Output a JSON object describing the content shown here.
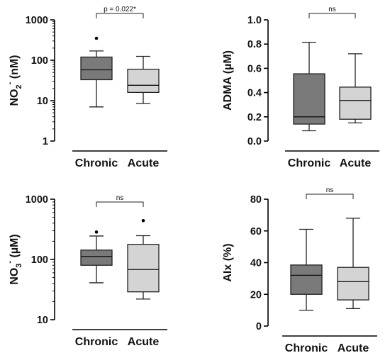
{
  "chart_data": [
    {
      "type": "box",
      "panel": "top-left",
      "ylabel": "NO2- (nM)",
      "yscale": "log",
      "ylim": [
        1,
        1000
      ],
      "ytick_labels": [
        "1",
        "10",
        "100",
        "1000"
      ],
      "categories": [
        "Chronic",
        "Acute"
      ],
      "boxes": [
        {
          "category": "Chronic",
          "whisker_low": 7,
          "q1": 33,
          "median": 58,
          "q3": 120,
          "whisker_high": 170,
          "outliers": [
            350
          ],
          "color": "#7a7a7a"
        },
        {
          "category": "Acute",
          "whisker_low": 8.5,
          "q1": 16,
          "median": 24,
          "q3": 60,
          "whisker_high": 125,
          "outliers": [],
          "color": "#d4d4d4"
        }
      ],
      "significance": "p = 0.022*"
    },
    {
      "type": "box",
      "panel": "top-right",
      "ylabel": "ADMA (µM)",
      "yscale": "linear",
      "ylim": [
        0,
        1.0
      ],
      "ytick_labels": [
        "0.0",
        "0.2",
        "0.4",
        "0.6",
        "0.8",
        "1.0"
      ],
      "categories": [
        "Chronic",
        "Acute"
      ],
      "boxes": [
        {
          "category": "Chronic",
          "whisker_low": 0.085,
          "q1": 0.14,
          "median": 0.2,
          "q3": 0.555,
          "whisker_high": 0.815,
          "outliers": [],
          "color": "#7a7a7a"
        },
        {
          "category": "Acute",
          "whisker_low": 0.15,
          "q1": 0.18,
          "median": 0.335,
          "q3": 0.445,
          "whisker_high": 0.72,
          "outliers": [],
          "color": "#d4d4d4"
        }
      ],
      "significance": "ns"
    },
    {
      "type": "box",
      "panel": "bottom-left",
      "ylabel": "NO3- (µM)",
      "yscale": "log",
      "ylim": [
        10,
        1000
      ],
      "ytick_labels": [
        "10",
        "100",
        "1000"
      ],
      "categories": [
        "Chronic",
        "Acute"
      ],
      "boxes": [
        {
          "category": "Chronic",
          "whisker_low": 41,
          "q1": 80,
          "median": 112,
          "q3": 143,
          "whisker_high": 245,
          "outliers": [
            285
          ],
          "color": "#7a7a7a"
        },
        {
          "category": "Acute",
          "whisker_low": 22,
          "q1": 29,
          "median": 68,
          "q3": 178,
          "whisker_high": 248,
          "outliers": [
            440
          ],
          "color": "#d4d4d4"
        }
      ],
      "significance": "ns"
    },
    {
      "type": "box",
      "panel": "bottom-right",
      "ylabel": "AIx (%)",
      "yscale": "linear",
      "ylim": [
        0,
        80
      ],
      "ytick_labels": [
        "0",
        "20",
        "40",
        "60",
        "80"
      ],
      "categories": [
        "Chronic",
        "Acute"
      ],
      "boxes": [
        {
          "category": "Chronic",
          "whisker_low": 10,
          "q1": 20,
          "median": 32,
          "q3": 38.5,
          "whisker_high": 61,
          "outliers": [],
          "color": "#7a7a7a"
        },
        {
          "category": "Acute",
          "whisker_low": 11,
          "q1": 16.5,
          "median": 28,
          "q3": 37,
          "whisker_high": 68,
          "outliers": [],
          "color": "#d4d4d4"
        }
      ],
      "significance": "ns"
    }
  ]
}
